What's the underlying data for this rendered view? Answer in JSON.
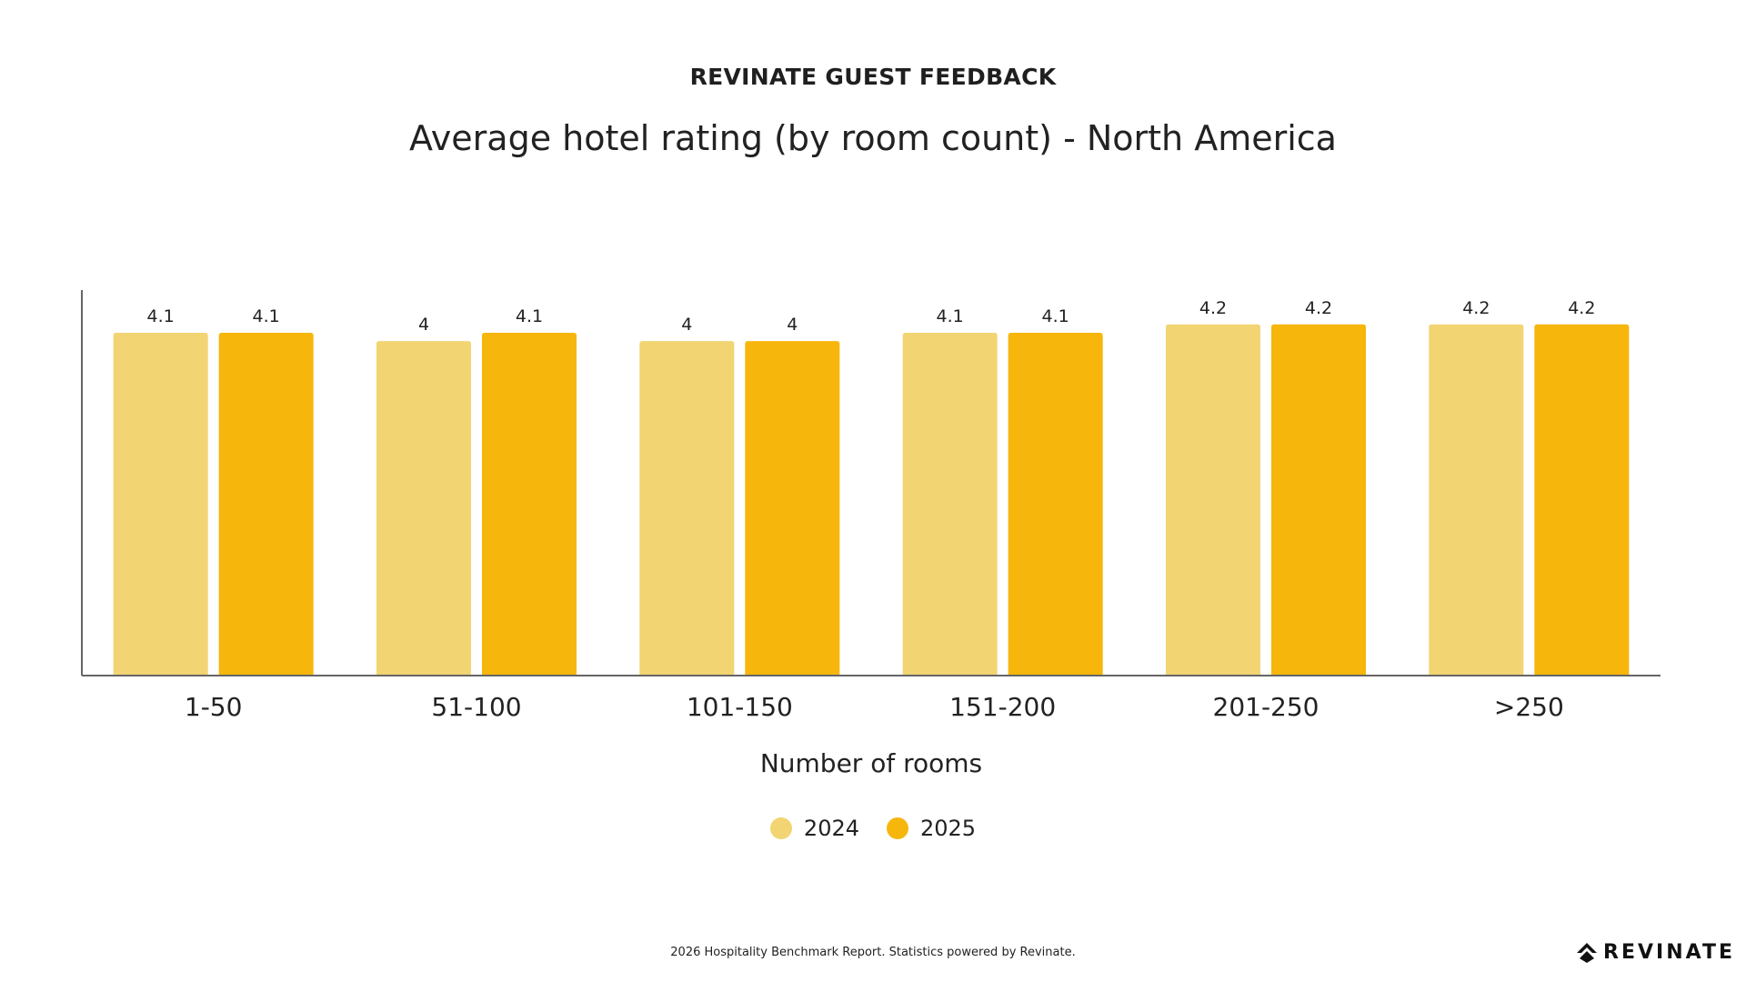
{
  "header": {
    "eyebrow": "REVINATE GUEST FEEDBACK",
    "title": "Average hotel rating (by room count) - North America"
  },
  "chart_data": {
    "type": "bar",
    "title": "Average hotel rating (by room count) - North America",
    "xlabel": "Number of rooms",
    "ylabel": "",
    "categories": [
      "1-50",
      "51-100",
      "101-150",
      "151-200",
      "201-250",
      ">250"
    ],
    "series": [
      {
        "name": "2024",
        "values": [
          4.1,
          4,
          4,
          4.1,
          4.2,
          4.2
        ],
        "color": "#F2D472"
      },
      {
        "name": "2025",
        "values": [
          4.1,
          4.1,
          4,
          4.1,
          4.2,
          4.2
        ],
        "color": "#F6B60C"
      }
    ],
    "ylim": [
      0,
      4.6
    ],
    "grid": false,
    "legend": "bottom-center",
    "data_labels": true
  },
  "footer": {
    "note": "2026 Hospitality Benchmark Report. Statistics powered by Revinate.",
    "brand": "REVINATE"
  }
}
